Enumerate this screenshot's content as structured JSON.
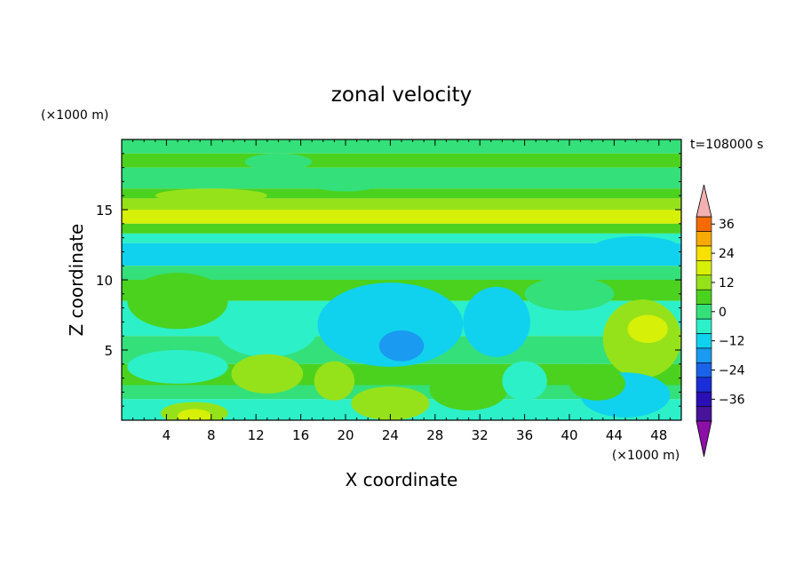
{
  "chart_data": {
    "type": "heatmap",
    "title": "zonal velocity",
    "xlabel": "X coordinate",
    "ylabel": "Z coordinate",
    "x_unit": "(×1000 m)",
    "y_unit": "(×1000 m)",
    "time_label": "t=108000 s",
    "xlim": [
      0,
      50
    ],
    "ylim": [
      0,
      20
    ],
    "x_ticks": [
      "4",
      "8",
      "12",
      "16",
      "20",
      "24",
      "28",
      "32",
      "36",
      "40",
      "44",
      "48"
    ],
    "y_ticks": [
      "5",
      "10",
      "15"
    ],
    "colorbar": {
      "tick_labels": [
        "36",
        "24",
        "12",
        "0",
        "−12",
        "−24",
        "−36"
      ],
      "tick_values": [
        36,
        24,
        12,
        0,
        -12,
        -24,
        -36
      ],
      "levels": [
        -42,
        -36,
        -30,
        -24,
        -18,
        -12,
        -6,
        0,
        6,
        12,
        18,
        24,
        30,
        36,
        42
      ],
      "colors": [
        "#8c0fa8",
        "#46139a",
        "#2a10b4",
        "#1a2ed8",
        "#1a62e8",
        "#1a9af0",
        "#10d2ee",
        "#2cf0c8",
        "#34e07a",
        "#4ad21e",
        "#96e21a",
        "#d6f008",
        "#f8e000",
        "#f8aa00",
        "#f46c00",
        "#ee2800",
        "#f2b0b0"
      ]
    },
    "bands": [
      {
        "z": [
          19.0,
          20.0
        ],
        "level": 0
      },
      {
        "z": [
          18.0,
          19.0
        ],
        "level": 1
      },
      {
        "z": [
          16.5,
          18.0
        ],
        "level": 0
      },
      {
        "z": [
          15.8,
          16.5
        ],
        "level": 1
      },
      {
        "z": [
          15.0,
          15.8
        ],
        "level": 2
      },
      {
        "z": [
          14.0,
          15.0
        ],
        "level": 3
      },
      {
        "z": [
          13.3,
          14.0
        ],
        "level": 1
      },
      {
        "z": [
          12.6,
          13.3
        ],
        "level": -1
      },
      {
        "z": [
          11.0,
          12.6
        ],
        "level": -2
      },
      {
        "z": [
          10.0,
          11.0
        ],
        "level": 0
      },
      {
        "z": [
          8.5,
          10.0
        ],
        "level": 1
      },
      {
        "z": [
          6.0,
          8.5
        ],
        "level": -1
      },
      {
        "z": [
          4.0,
          6.0
        ],
        "level": 0
      },
      {
        "z": [
          2.5,
          4.0
        ],
        "level": 1
      },
      {
        "z": [
          1.5,
          2.5
        ],
        "level": 0
      },
      {
        "z": [
          0.0,
          1.5
        ],
        "level": -1
      }
    ],
    "blobs": [
      {
        "x": 24,
        "z": 6.8,
        "rx": 6.5,
        "rz": 3.0,
        "level": -2
      },
      {
        "x": 25,
        "z": 5.3,
        "rx": 2.0,
        "rz": 1.1,
        "level": -3
      },
      {
        "x": 33.5,
        "z": 7.0,
        "rx": 3.0,
        "rz": 2.5,
        "level": -2
      },
      {
        "x": 13,
        "z": 6.5,
        "rx": 4.5,
        "rz": 2.0,
        "level": -1
      },
      {
        "x": 5,
        "z": 8.5,
        "rx": 4.5,
        "rz": 2.0,
        "level": 1
      },
      {
        "x": 46.5,
        "z": 5.8,
        "rx": 3.5,
        "rz": 2.8,
        "level": 2
      },
      {
        "x": 47,
        "z": 6.5,
        "rx": 1.8,
        "rz": 1.0,
        "level": 3
      },
      {
        "x": 13,
        "z": 3.3,
        "rx": 3.2,
        "rz": 1.4,
        "level": 2
      },
      {
        "x": 19,
        "z": 2.8,
        "rx": 1.8,
        "rz": 1.4,
        "level": 2
      },
      {
        "x": 24,
        "z": 1.2,
        "rx": 3.5,
        "rz": 1.2,
        "level": 2
      },
      {
        "x": 6.5,
        "z": 0.5,
        "rx": 3.0,
        "rz": 0.8,
        "level": 2
      },
      {
        "x": 6.5,
        "z": 0.3,
        "rx": 1.5,
        "rz": 0.5,
        "level": 3
      },
      {
        "x": 45,
        "z": 1.8,
        "rx": 4.0,
        "rz": 1.6,
        "level": -2
      },
      {
        "x": 42.5,
        "z": 2.6,
        "rx": 2.5,
        "rz": 1.2,
        "level": 1
      },
      {
        "x": 31,
        "z": 2.2,
        "rx": 3.5,
        "rz": 1.5,
        "level": 1
      },
      {
        "x": 36,
        "z": 2.8,
        "rx": 2.0,
        "rz": 1.4,
        "level": -1
      },
      {
        "x": 5,
        "z": 3.8,
        "rx": 4.5,
        "rz": 1.2,
        "level": -1
      },
      {
        "x": 14,
        "z": 18.4,
        "rx": 3.0,
        "rz": 0.6,
        "level": 0
      },
      {
        "x": 8,
        "z": 16.0,
        "rx": 5.0,
        "rz": 0.5,
        "level": 2
      },
      {
        "x": 46,
        "z": 12.2,
        "rx": 4.0,
        "rz": 0.9,
        "level": -2
      },
      {
        "x": 40,
        "z": 9.0,
        "rx": 4.0,
        "rz": 1.2,
        "level": 0
      },
      {
        "x": 20,
        "z": 16.8,
        "rx": 3.0,
        "rz": 0.5,
        "level": 0
      }
    ]
  }
}
